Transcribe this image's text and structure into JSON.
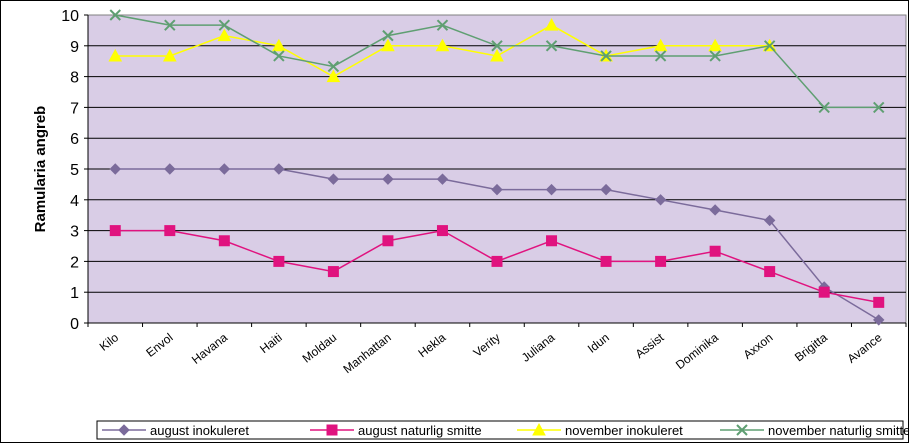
{
  "chart_data": {
    "type": "line",
    "title": "",
    "xlabel": "",
    "ylabel": "Ramularia angreb",
    "ylim": [
      0,
      10
    ],
    "yticks": [
      0,
      1,
      2,
      3,
      4,
      5,
      6,
      7,
      8,
      9,
      10
    ],
    "grid": true,
    "legend_position": "bottom",
    "categories": [
      "Kilo",
      "Envol",
      "Havana",
      "Haiti",
      "Moldau",
      "Manhattan",
      "Hekla",
      "Verity",
      "Juliana",
      "Idun",
      "Assist",
      "Dominika",
      "Axxon",
      "Brigitta",
      "Avance"
    ],
    "series": [
      {
        "name": "august inokuleret",
        "color": "#7b6b9b",
        "marker": "diamond",
        "values": [
          5,
          5,
          5,
          5,
          4.67,
          4.67,
          4.67,
          4.33,
          4.33,
          4.33,
          4,
          3.67,
          3.33,
          1.17,
          0.1
        ]
      },
      {
        "name": "august naturlig smitte",
        "color": "#e0137f",
        "marker": "square",
        "values": [
          3,
          3,
          2.67,
          2,
          1.67,
          2.67,
          3,
          2,
          2.67,
          2,
          2,
          2.33,
          1.67,
          1,
          0.67
        ]
      },
      {
        "name": "november inokuleret",
        "color": "#ffff00",
        "marker": "triangle",
        "values": [
          8.67,
          8.67,
          9.33,
          9,
          8,
          9,
          9,
          8.67,
          9.67,
          8.67,
          9,
          9,
          9,
          null,
          null
        ]
      },
      {
        "name": "november naturlig smitte",
        "color": "#5f9f72",
        "marker": "x",
        "values": [
          10,
          9.67,
          9.67,
          8.67,
          8.33,
          9.33,
          9.67,
          9,
          9,
          8.67,
          8.67,
          8.67,
          9,
          7,
          7
        ]
      }
    ],
    "plot_background": "#d9cde6"
  }
}
